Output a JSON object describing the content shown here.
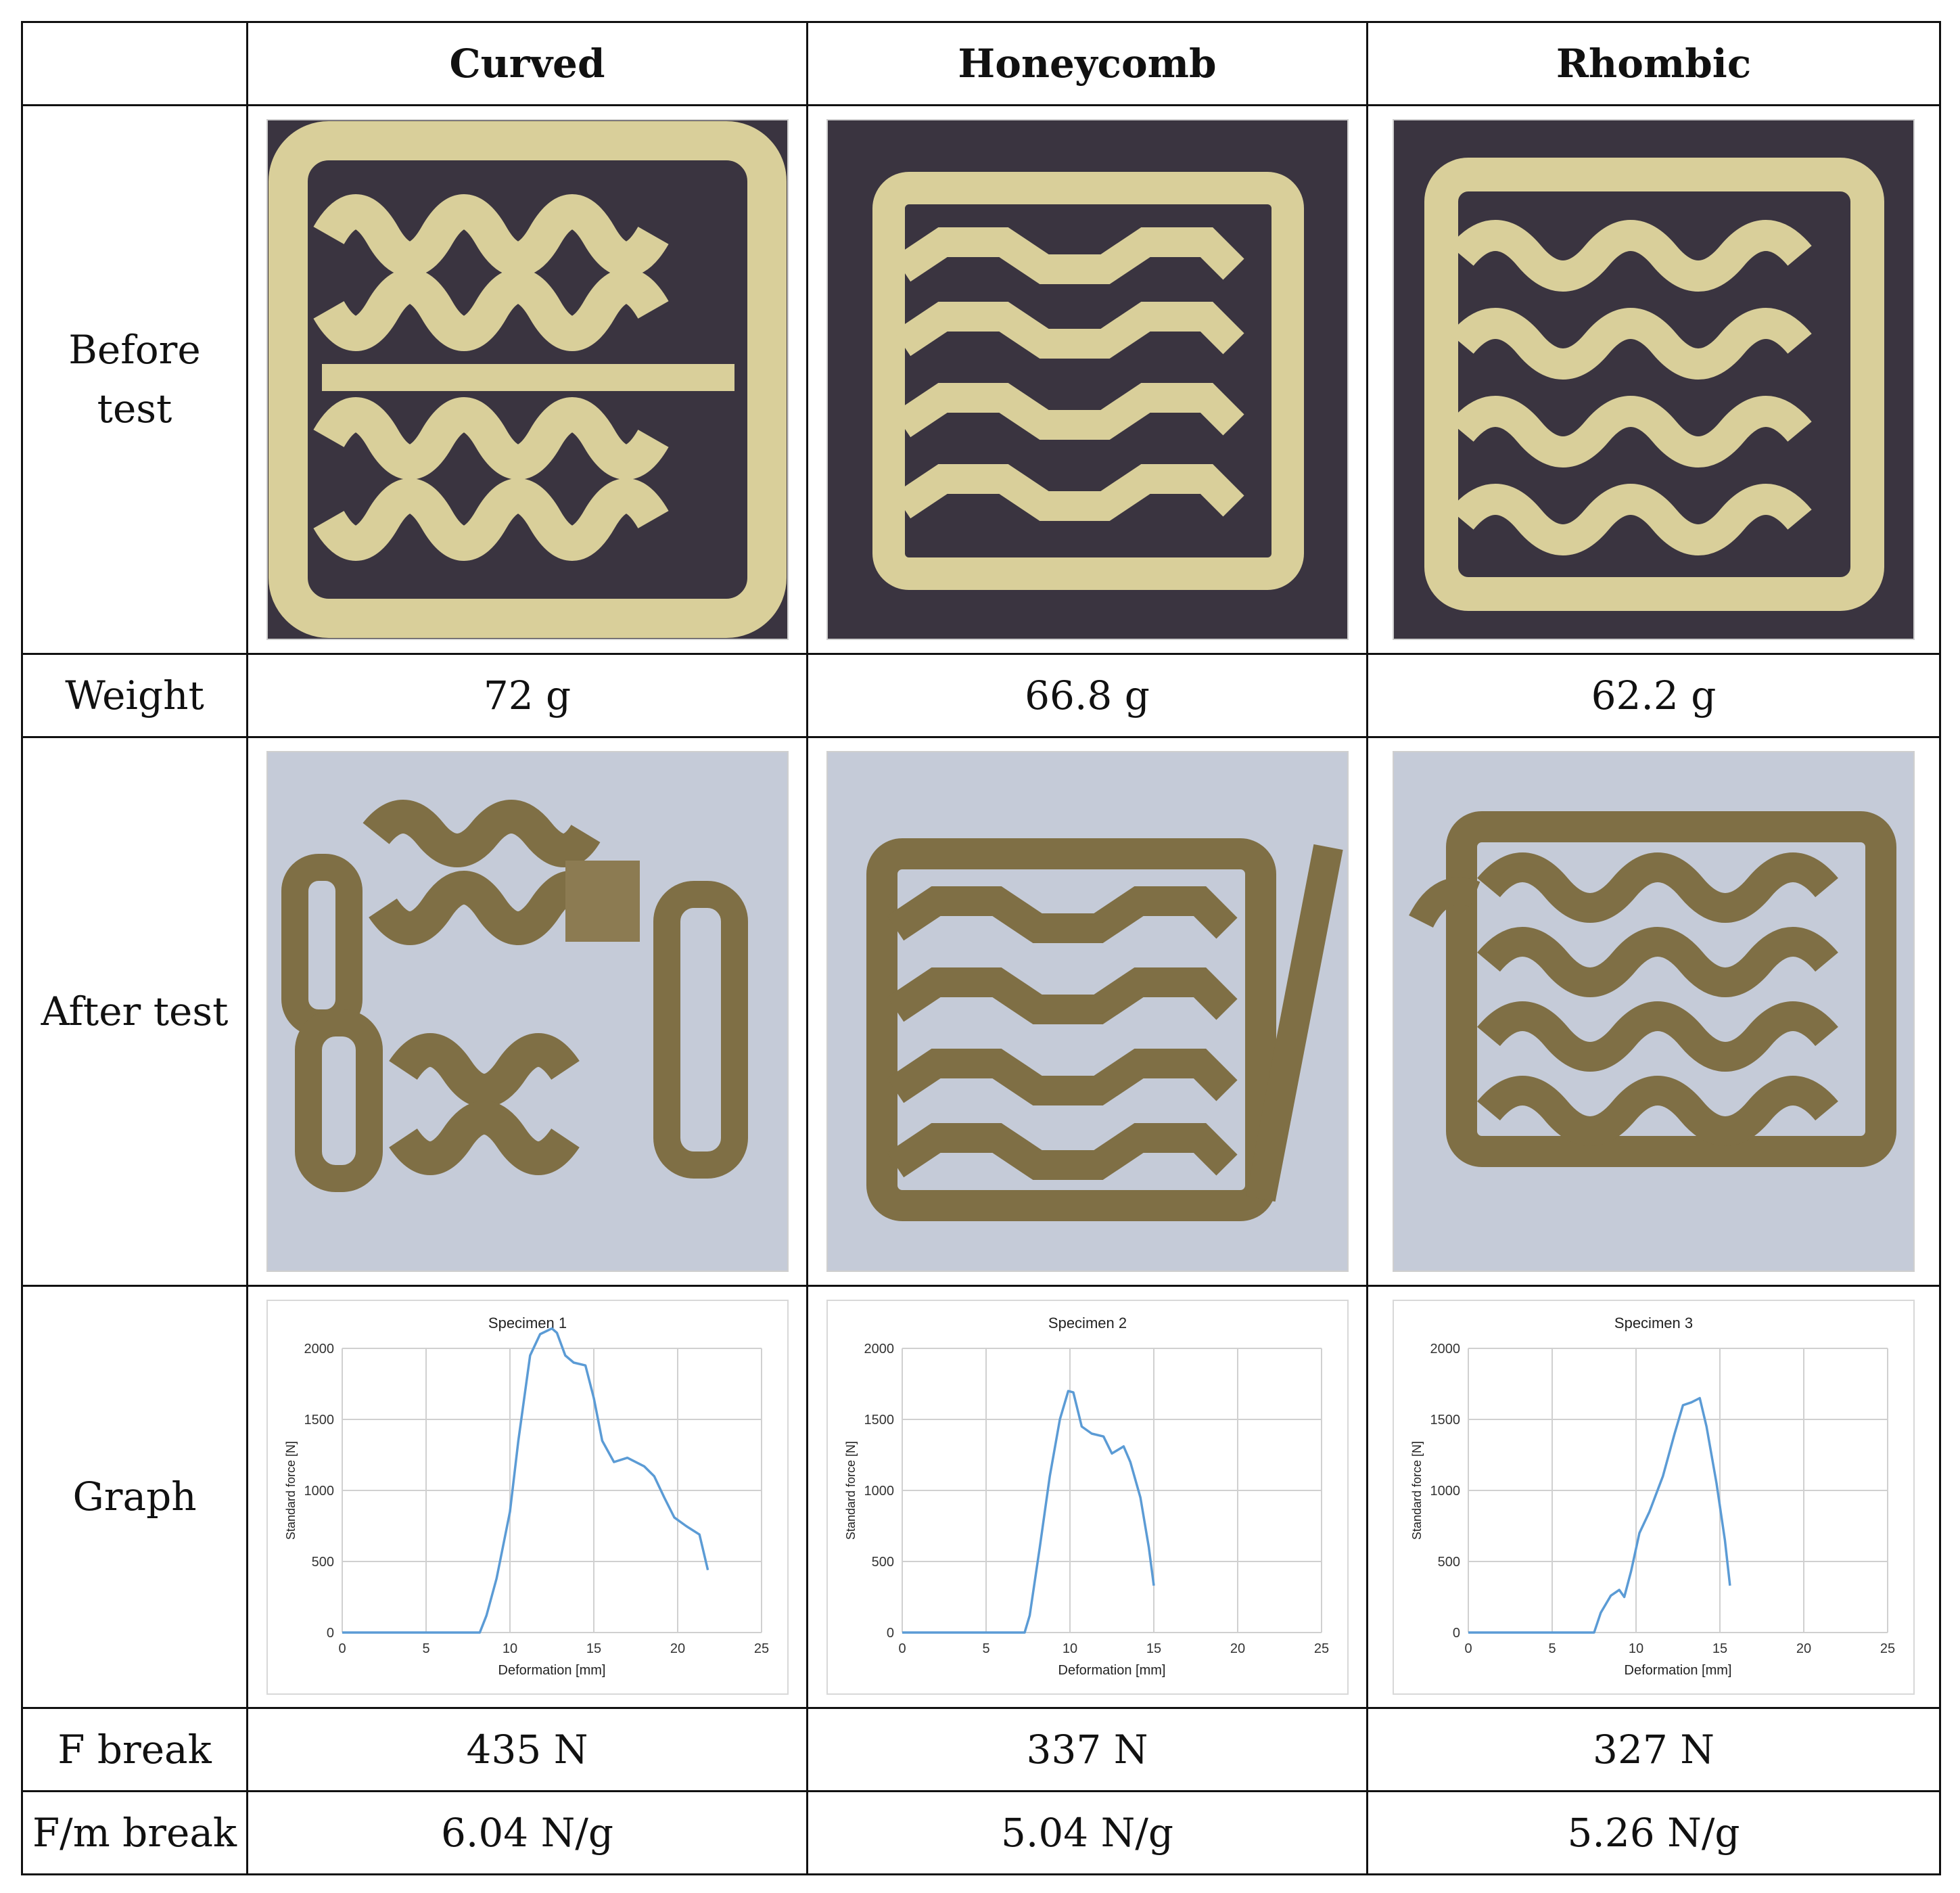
{
  "table": {
    "corner": "",
    "headers": [
      "Curved",
      "Honeycomb",
      "Rhombic"
    ],
    "rows": {
      "before_test": {
        "label_line1": "Before",
        "label_line2": "test",
        "photo_descriptions": []
      },
      "weight": {
        "label": "Weight",
        "values": [
          "72 g",
          "66.8 g",
          "62.2 g"
        ]
      },
      "after_test": {
        "label": "After test"
      },
      "graph": {
        "label": "Graph"
      },
      "f_break": {
        "label": "F break",
        "values": [
          "435 N",
          "337 N",
          "327 N"
        ]
      },
      "fm_break": {
        "label": "F/m break",
        "values": [
          "6.04 N/g",
          "5.04 N/g",
          "5.26 N/g"
        ]
      }
    }
  },
  "colors": {
    "line": "#5b9bd5",
    "before_bg": "#3a3440",
    "after_bg": "#c5cbd8",
    "specimen_before": "#d9cf9a",
    "specimen_after": "#7f6f45"
  },
  "chart_data": [
    {
      "type": "line",
      "title": "Specimen 1",
      "xlabel": "Deformation [mm]",
      "ylabel": "Standard force [N]",
      "xlim": [
        0,
        25
      ],
      "ylim": [
        0,
        2000
      ],
      "xticks": [
        0,
        5,
        10,
        15,
        20,
        25
      ],
      "yticks": [
        0,
        500,
        1000,
        1500,
        2000
      ],
      "grid": true,
      "x": [
        0,
        8.2,
        8.6,
        9.2,
        10.0,
        10.5,
        11.2,
        11.8,
        12.5,
        12.8,
        13.3,
        13.8,
        14.5,
        15.0,
        15.5,
        16.2,
        17.0,
        18.0,
        18.6,
        19.2,
        19.8,
        20.5,
        21.3,
        21.8
      ],
      "y": [
        0,
        0,
        120,
        380,
        850,
        1350,
        1950,
        2100,
        2140,
        2110,
        1950,
        1900,
        1880,
        1650,
        1350,
        1200,
        1230,
        1170,
        1100,
        950,
        810,
        750,
        690,
        440
      ]
    },
    {
      "type": "line",
      "title": "Specimen 2",
      "xlabel": "Deformation [mm]",
      "ylabel": "Standard force [N]",
      "xlim": [
        0,
        25
      ],
      "ylim": [
        0,
        2000
      ],
      "xticks": [
        0,
        5,
        10,
        15,
        20,
        25
      ],
      "yticks": [
        0,
        500,
        1000,
        1500,
        2000
      ],
      "grid": true,
      "x": [
        0,
        7.3,
        7.6,
        8.2,
        8.8,
        9.4,
        9.9,
        10.2,
        10.7,
        11.3,
        12.0,
        12.5,
        13.2,
        13.6,
        14.2,
        14.7,
        15.0
      ],
      "y": [
        0,
        0,
        120,
        600,
        1100,
        1500,
        1700,
        1690,
        1450,
        1400,
        1380,
        1260,
        1310,
        1200,
        950,
        600,
        330
      ]
    },
    {
      "type": "line",
      "title": "Specimen 3",
      "xlabel": "Deformation [mm]",
      "ylabel": "Standard force [N]",
      "xlim": [
        0,
        25
      ],
      "ylim": [
        0,
        2000
      ],
      "xticks": [
        0,
        5,
        10,
        15,
        20,
        25
      ],
      "yticks": [
        0,
        500,
        1000,
        1500,
        2000
      ],
      "grid": true,
      "x": [
        0,
        7.5,
        7.9,
        8.5,
        9.0,
        9.3,
        9.7,
        10.2,
        10.8,
        11.6,
        12.3,
        12.8,
        13.3,
        13.8,
        14.2,
        14.8,
        15.3,
        15.6
      ],
      "y": [
        0,
        0,
        140,
        260,
        300,
        250,
        430,
        700,
        850,
        1100,
        1400,
        1600,
        1620,
        1650,
        1450,
        1050,
        650,
        330
      ]
    }
  ]
}
